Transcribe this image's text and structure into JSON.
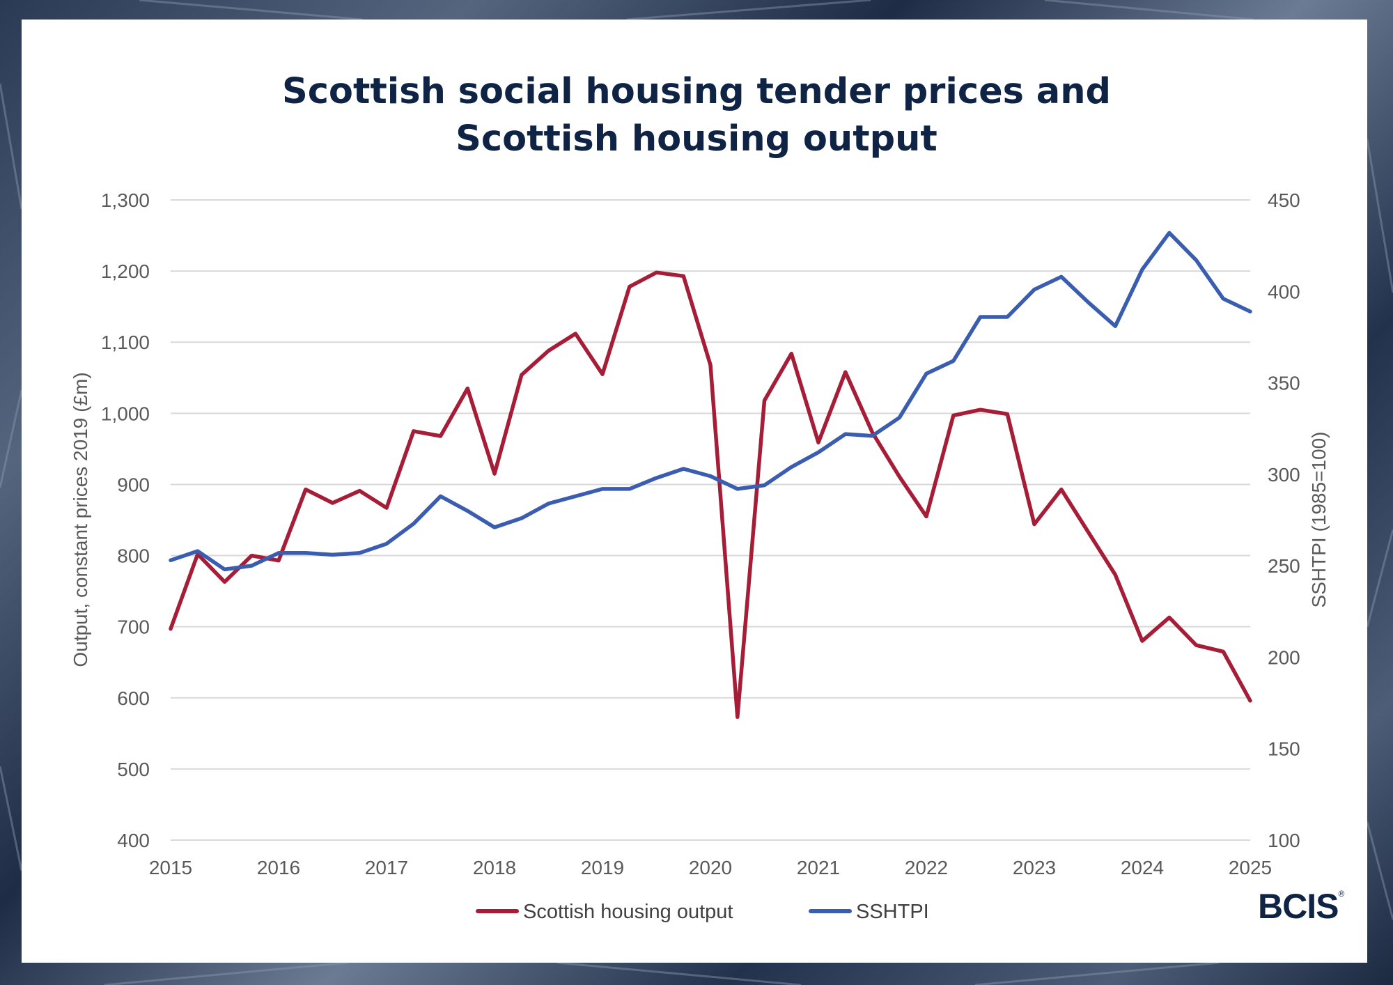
{
  "title_line1": "Scottish social housing tender prices and",
  "title_line2": "Scottish housing output",
  "logo": "BCIS",
  "logo_mark": "®",
  "colors": {
    "output": "#a51d36",
    "sshtpi": "#3a5db0",
    "grid": "#d9d9d9",
    "title": "#0f2344"
  },
  "chart_data": {
    "type": "line",
    "x_ticks": [
      "2015",
      "2016",
      "2017",
      "2018",
      "2019",
      "2020",
      "2021",
      "2022",
      "2023",
      "2024",
      "2025"
    ],
    "x_range": [
      2015,
      2025
    ],
    "left_axis": {
      "label": "Output, constant prices 2019 (£m)",
      "range": [
        400,
        1300
      ],
      "ticks": [
        "400",
        "500",
        "600",
        "700",
        "800",
        "900",
        "1,000",
        "1,100",
        "1,200",
        "1,300"
      ],
      "tick_values": [
        400,
        500,
        600,
        700,
        800,
        900,
        1000,
        1100,
        1200,
        1300
      ]
    },
    "right_axis": {
      "label": "SSHTPI (1985=100)",
      "range": [
        100,
        450
      ],
      "ticks": [
        "100",
        "150",
        "200",
        "250",
        "300",
        "350",
        "400",
        "450"
      ],
      "tick_values": [
        100,
        150,
        200,
        250,
        300,
        350,
        400,
        450
      ]
    },
    "legend_position": "bottom",
    "grid": true,
    "x": [
      2015.0,
      2015.25,
      2015.5,
      2015.75,
      2016.0,
      2016.25,
      2016.5,
      2016.75,
      2017.0,
      2017.25,
      2017.5,
      2017.75,
      2018.0,
      2018.25,
      2018.5,
      2018.75,
      2019.0,
      2019.25,
      2019.5,
      2019.75,
      2020.0,
      2020.25,
      2020.5,
      2020.75,
      2021.0,
      2021.25,
      2021.5,
      2021.75,
      2022.0,
      2022.25,
      2022.5,
      2022.75,
      2023.0,
      2023.25,
      2023.5,
      2023.75,
      2024.0,
      2024.25,
      2024.5,
      2024.75,
      2025.0
    ],
    "series": [
      {
        "name": "Scottish housing output",
        "axis": "left",
        "values": [
          697,
          802,
          763,
          800,
          793,
          893,
          874,
          891,
          867,
          975,
          968,
          1035,
          915,
          1054,
          1088,
          1112,
          1055,
          1178,
          1198,
          1193,
          1068,
          573,
          1018,
          1084,
          959,
          1058,
          973,
          911,
          855,
          997,
          1005,
          999,
          844,
          893,
          833,
          773,
          680,
          713,
          674,
          665,
          596
        ]
      },
      {
        "name": "SSHTPI",
        "axis": "right",
        "values": [
          253,
          258,
          248,
          250,
          257,
          257,
          256,
          257,
          262,
          273,
          288,
          280,
          271,
          276,
          284,
          288,
          292,
          292,
          298,
          303,
          299,
          292,
          294,
          304,
          312,
          322,
          321,
          331,
          355,
          362,
          386,
          386,
          401,
          408,
          394,
          381,
          412,
          432,
          417,
          396,
          389
        ]
      }
    ]
  }
}
